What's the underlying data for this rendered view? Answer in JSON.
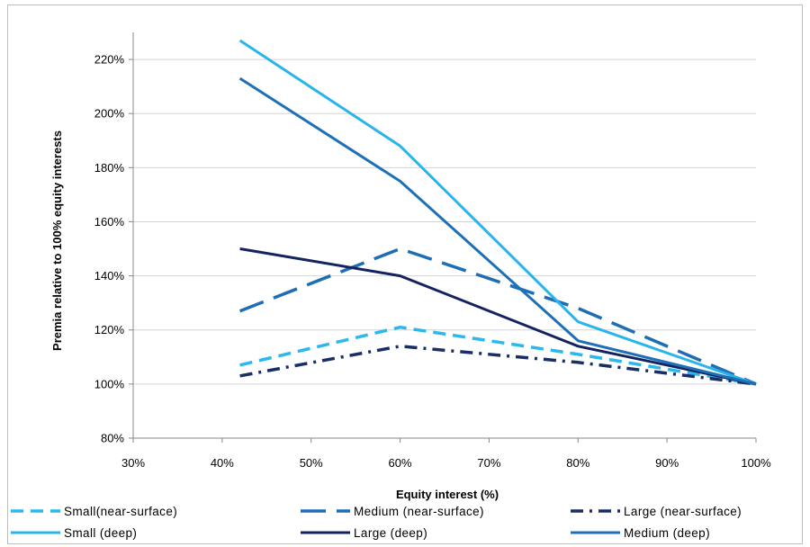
{
  "chart_data": {
    "type": "line",
    "title": "",
    "xlabel": "Equity interest (%)",
    "ylabel": "Premia relative to 100% equity interests",
    "xlim": [
      0.3,
      1.0
    ],
    "ylim": [
      0.8,
      2.3
    ],
    "x_ticks": [
      "30%",
      "40%",
      "50%",
      "60%",
      "70%",
      "80%",
      "90%",
      "100%"
    ],
    "y_ticks": [
      "80%",
      "100%",
      "120%",
      "140%",
      "160%",
      "180%",
      "200%",
      "220%"
    ],
    "grid": "horizontal",
    "legend_position": "bottom",
    "series": [
      {
        "name": "Small(near-surface)",
        "color": "#2bb8ef",
        "dash": "dashed",
        "width": 3.5,
        "points": [
          [
            0.42,
            1.07
          ],
          [
            0.6,
            1.21
          ],
          [
            0.8,
            1.11
          ],
          [
            1.0,
            1.0
          ]
        ]
      },
      {
        "name": "Medium (near-surface)",
        "color": "#1f6db5",
        "dash": "long-dash",
        "width": 3.5,
        "points": [
          [
            0.42,
            1.27
          ],
          [
            0.6,
            1.5
          ],
          [
            0.8,
            1.28
          ],
          [
            1.0,
            1.0
          ]
        ]
      },
      {
        "name": "Large (near-surface)",
        "color": "#1a2e66",
        "dash": "dash-dot",
        "width": 3.5,
        "points": [
          [
            0.42,
            1.03
          ],
          [
            0.6,
            1.14
          ],
          [
            0.8,
            1.08
          ],
          [
            1.0,
            1.0
          ]
        ]
      },
      {
        "name": "Small (deep)",
        "color": "#29b4ec",
        "dash": "solid",
        "width": 3,
        "points": [
          [
            0.42,
            2.27
          ],
          [
            0.6,
            1.88
          ],
          [
            0.8,
            1.23
          ],
          [
            1.0,
            1.0
          ]
        ]
      },
      {
        "name": "Large (deep)",
        "color": "#14235f",
        "dash": "solid",
        "width": 3,
        "points": [
          [
            0.42,
            1.5
          ],
          [
            0.6,
            1.4
          ],
          [
            0.8,
            1.14
          ],
          [
            1.0,
            1.0
          ]
        ]
      },
      {
        "name": "Medium (deep)",
        "color": "#1d70b8",
        "dash": "solid",
        "width": 3,
        "points": [
          [
            0.42,
            2.13
          ],
          [
            0.6,
            1.75
          ],
          [
            0.8,
            1.16
          ],
          [
            1.0,
            1.0
          ]
        ]
      }
    ]
  }
}
